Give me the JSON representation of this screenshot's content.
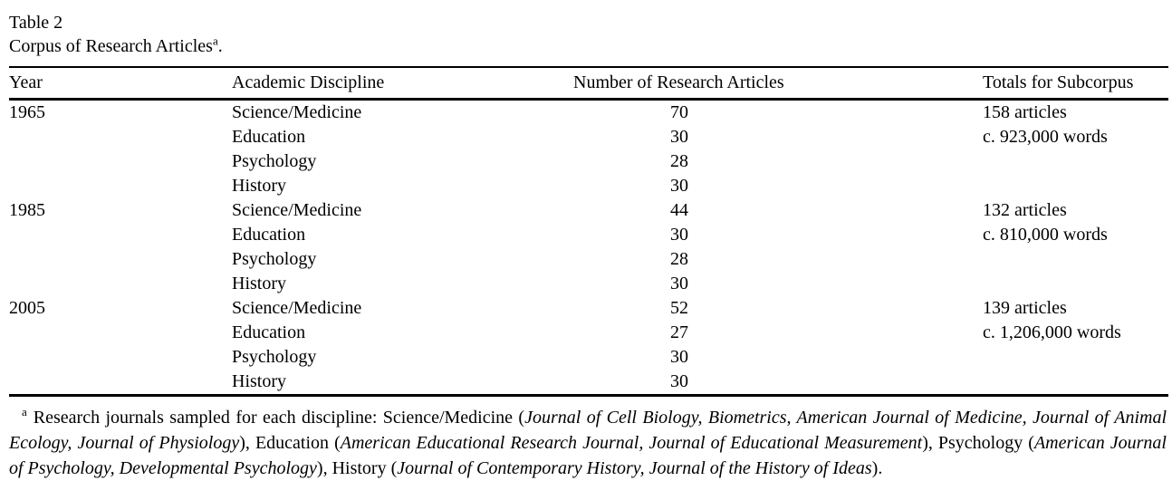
{
  "page": {
    "label": "Table 2",
    "caption": "Corpus of Research Articles",
    "caption_note": "a",
    "caption_period": "."
  },
  "table": {
    "columns": [
      "Year",
      "Academic Discipline",
      "Number of Research Articles",
      "Totals for Subcorpus"
    ],
    "groups": [
      {
        "year": "1965",
        "rows": [
          {
            "discipline": "Science/Medicine",
            "articles": "70"
          },
          {
            "discipline": "Education",
            "articles": "30"
          },
          {
            "discipline": "Psychology",
            "articles": "28"
          },
          {
            "discipline": "History",
            "articles": "30"
          }
        ],
        "totals": {
          "articles": "158 articles",
          "words": "c. 923,000 words"
        }
      },
      {
        "year": "1985",
        "rows": [
          {
            "discipline": "Science/Medicine",
            "articles": "44"
          },
          {
            "discipline": "Education",
            "articles": "30"
          },
          {
            "discipline": "Psychology",
            "articles": "28"
          },
          {
            "discipline": "History",
            "articles": "30"
          }
        ],
        "totals": {
          "articles": "132 articles",
          "words": "c. 810,000 words"
        }
      },
      {
        "year": "2005",
        "rows": [
          {
            "discipline": "Science/Medicine",
            "articles": "52"
          },
          {
            "discipline": "Education",
            "articles": "27"
          },
          {
            "discipline": "Psychology",
            "articles": "30"
          },
          {
            "discipline": "History",
            "articles": "30"
          }
        ],
        "totals": {
          "articles": "139 articles",
          "words": "c. 1,206,000 words"
        }
      }
    ]
  },
  "footnote": {
    "marker": "a",
    "segments": [
      {
        "text": "Research journals sampled for each discipline: Science/Medicine ("
      },
      {
        "text": "Journal of Cell Biology, Biometrics, American Journal of Medicine, Journal of Animal Ecology, Journal of Physiology"
      },
      {
        "text": "), Education ("
      },
      {
        "text": "American Educational Research Journal, Journal of Educational Measurement"
      },
      {
        "text": "), Psychology ("
      },
      {
        "text": "American Journal of Psychology, Developmental Psychology"
      },
      {
        "text": "), History ("
      },
      {
        "text": "Journal of Contemporary History, Journal of the History of Ideas"
      },
      {
        "text": ")."
      }
    ]
  }
}
